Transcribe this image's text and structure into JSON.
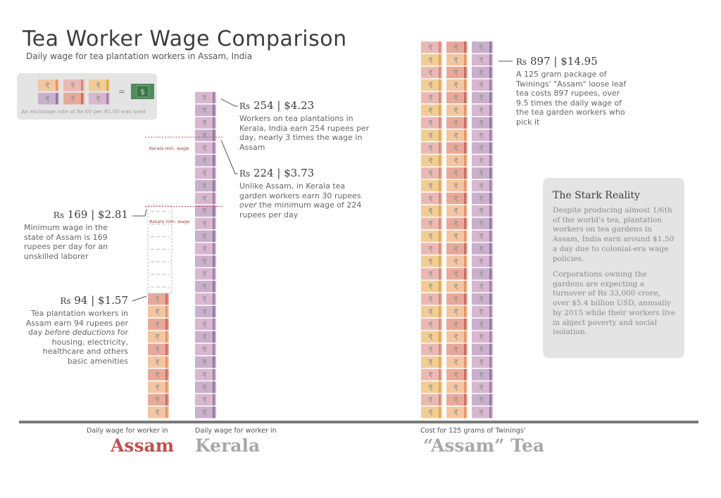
{
  "title": "Tea Worker Wage Comparison",
  "subtitle": "Daily wage for tea plantation workers in Assam, India",
  "legend": {
    "equals": "=",
    "dollar_symbol": "$",
    "rupee_symbol": "₹",
    "note": "An exchange rate of Rs 60 per $1.00 was used"
  },
  "colors": {
    "note_palette": [
      "#f3c6a1",
      "#ebb9b4",
      "#d8b7d0",
      "#e8a99b",
      "#f1cd94",
      "#c9b0cc"
    ],
    "note_stripe": [
      "#e59467",
      "#d9867c",
      "#a77ca9",
      "#c86f60",
      "#e3a84e",
      "#9178a0"
    ],
    "dollar_green": "#4f8c5c",
    "baseline": "#7a7a7a",
    "min_wage_line": "#c0504d",
    "assam": "#c0504d",
    "kerala": "#a8a8a8",
    "twinings": "#a8a8a8"
  },
  "chart_data": {
    "type": "bar",
    "title": "Tea Worker Wage Comparison",
    "subtitle": "Daily wage for tea plantation workers in Assam, India",
    "unit": "Rupees per day (Rs)",
    "categories": [
      "Assam",
      "Kerala",
      "\"Assam\" Tea"
    ],
    "series": [
      {
        "name": "",
        "values": [
          94,
          254,
          897
        ]
      }
    ],
    "values_usd": [
      1.57,
      4.23,
      14.95
    ],
    "assam_min_wage": 169,
    "assam_min_wage_usd": 2.81,
    "kerala_min_wage": 224,
    "kerala_min_wage_usd": 3.73,
    "exchange_rate_rs_per_usd": 60,
    "note_value_rs": 10
  },
  "annotations": {
    "assam_actual": {
      "rs": "Rs",
      "rupees": "94",
      "sep": "|",
      "usd": "$1.57",
      "body": "Tea plantation workers in Assam earn 94 rupees per day ",
      "body_em": "before deductions",
      "body_tail": " for housing, electricity, healthcare and others basic amenities"
    },
    "assam_min": {
      "rs": "Rs",
      "rupees": "169",
      "sep": "|",
      "usd": "$2.81",
      "body": "Minimum wage in the state of Assam is 169 rupees per day for an unskilled laborer"
    },
    "kerala_actual": {
      "rs": "Rs",
      "rupees": "254",
      "sep": "|",
      "usd": "$4.23",
      "body": "Workers on tea plantations in Kerala, India earn 254 rupees per day, nearly 3 times the wage in Assam"
    },
    "kerala_min": {
      "rs": "Rs",
      "rupees": "224",
      "sep": "|",
      "usd": "$3.73",
      "body_pre": "Unlike Assam, in Kerala tea garden workers earn 30 rupees ",
      "body_em": "over",
      "body_tail": " the minimum wage of 224 rupees per day"
    },
    "twinings": {
      "rs": "Rs",
      "rupees": "897",
      "sep": "|",
      "usd": "$14.95",
      "body": "A 125 gram package of Twinings' \"Assam\" loose leaf tea costs 897 rupees, over 9.5 times the daily wage of the tea garden workers who pick it"
    }
  },
  "min_wage_labels": {
    "kerala": "Kerala min. wage",
    "assam": "Assam min. wage"
  },
  "bottom_labels": {
    "assam_caption": "Daily wage for worker in",
    "assam_name": "Assam",
    "kerala_caption": "Daily wage for worker in",
    "kerala_name": "Kerala",
    "twinings_caption": "Cost for 125 grams of Twinings'",
    "twinings_name": "“Assam” Tea"
  },
  "reality": {
    "title": "The Stark Reality",
    "p1": "Despite producing almost 1/6th of the world's tea, plantation workers on tea gardens in Assam, India earn around $1.50 a day due to colonial-era wage policies.",
    "p2": "Corporations owning the gardens are expecting a turnover of Rs 33,000 crore, over $5.4 billion USD, annually by 2015 while their workers live in abject poverty and social isolation."
  }
}
